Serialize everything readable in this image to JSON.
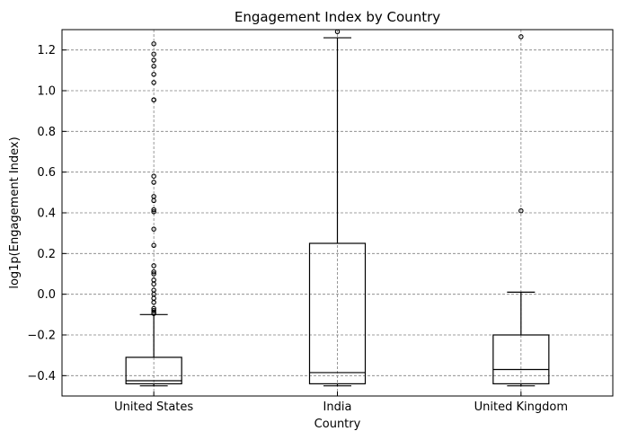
{
  "chart_data": {
    "type": "box",
    "title": "Engagement Index by Country",
    "xlabel": "Country",
    "ylabel": "log1p(Engagement Index)",
    "ylim": [
      -0.5,
      1.3
    ],
    "yticks": [
      -0.4,
      -0.2,
      0.0,
      0.2,
      0.4,
      0.6,
      0.8,
      1.0,
      1.2
    ],
    "ytick_labels": [
      "−0.4",
      "−0.2",
      "0.0",
      "0.2",
      "0.4",
      "0.6",
      "0.8",
      "1.0",
      "1.2"
    ],
    "grid": true,
    "categories": [
      "United States",
      "India",
      "United Kingdom"
    ],
    "boxes": [
      {
        "category": "United States",
        "whisker_low": -0.45,
        "q1": -0.44,
        "median": -0.425,
        "q3": -0.31,
        "whisker_high": -0.1,
        "fliers": [
          1.23,
          1.18,
          1.15,
          1.12,
          1.08,
          1.04,
          0.955,
          0.955,
          0.58,
          0.55,
          0.48,
          0.46,
          0.415,
          0.405,
          0.32,
          0.24,
          0.14,
          0.11,
          0.1,
          0.07,
          0.05,
          0.02,
          0.0,
          -0.02,
          -0.04,
          -0.07,
          -0.08,
          -0.09,
          -0.095
        ]
      },
      {
        "category": "India",
        "whisker_low": -0.45,
        "q1": -0.44,
        "median": -0.385,
        "q3": 0.25,
        "whisker_high": 1.26,
        "fliers": [
          1.29
        ]
      },
      {
        "category": "United Kingdom",
        "whisker_low": -0.45,
        "q1": -0.44,
        "median": -0.37,
        "q3": -0.2,
        "whisker_high": 0.01,
        "fliers": [
          1.265,
          0.41
        ]
      }
    ]
  }
}
